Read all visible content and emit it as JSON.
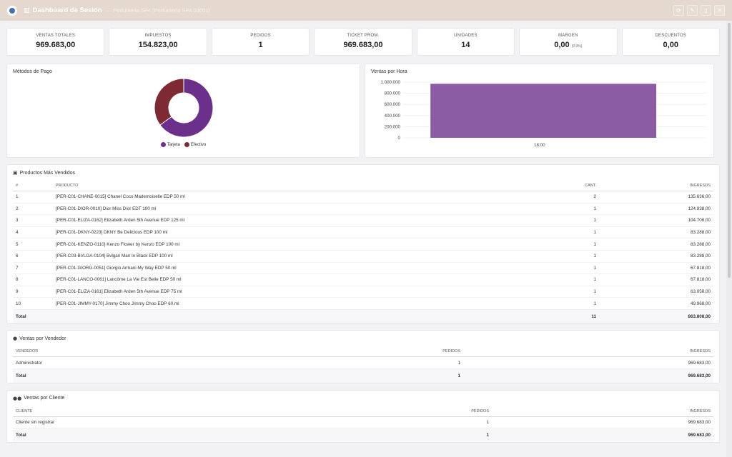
{
  "header": {
    "title": "Dashboard de Sesión",
    "subtitle": "— Perfumeria SPA (Perfumeria SPA 00001)",
    "actions": [
      "refresh-icon",
      "pencil-icon",
      "file-icon",
      "close-icon"
    ]
  },
  "kpis": [
    {
      "label": "VENTAS TOTALES",
      "value": "969.683,00"
    },
    {
      "label": "IMPUESTOS",
      "value": "154.823,00"
    },
    {
      "label": "PEDIDOS",
      "value": "1"
    },
    {
      "label": "TICKET PROM.",
      "value": "969.683,00"
    },
    {
      "label": "UNIDADES",
      "value": "14"
    },
    {
      "label": "MARGEN",
      "value": "0,00",
      "note": "(0.0%)"
    },
    {
      "label": "DESCUENTOS",
      "value": "0,00"
    }
  ],
  "payment_chart": {
    "title": "Métodos de Pago",
    "colors": {
      "Tarjeta": "#6b2f8c",
      "Efectivo": "#7e2a35"
    }
  },
  "hour_chart": {
    "title": "Ventas por Hora",
    "bar_color": "#8b5ba3"
  },
  "chart_data": [
    {
      "type": "pie",
      "labels": [
        "Tarjeta",
        "Efectivo"
      ],
      "values": [
        65,
        35
      ]
    },
    {
      "type": "bar",
      "categories": [
        "18:00"
      ],
      "values": [
        969683
      ],
      "ylim": [
        0,
        1000000
      ],
      "yticks": [
        "1.000.000",
        "800.000",
        "600.000",
        "400.000",
        "200.000",
        "0"
      ],
      "grid": true
    }
  ],
  "products": {
    "title": "Productos Más Vendidos",
    "headers": [
      "#",
      "PRODUCTO",
      "CANT.",
      "INGRESOS"
    ],
    "rows": [
      [
        "1",
        "[PER-C01-CHANE-0015] Chanel Coco Mademoiselle EDP 50 ml",
        "2",
        "135.636,00"
      ],
      [
        "2",
        "[PER-C01-DIOR-0010] Dior Miss Dior EDT 100 ml",
        "1",
        "124.938,00"
      ],
      [
        "3",
        "[PER-C01-ELIZA-0162] Elizabeth Arden 5th Avenue EDP 125 ml",
        "1",
        "104.708,00"
      ],
      [
        "4",
        "[PER-C01-DKNY-0223] DKNY Be Delicious EDP 100 ml",
        "1",
        "83.288,00"
      ],
      [
        "5",
        "[PER-C01-KENZO-0110] Kenzo Flower by Kenzo EDP 100 ml",
        "1",
        "83.288,00"
      ],
      [
        "6",
        "[PER-C03-BVLGA-0104] Bvlgari Man In Black EDP 100 ml",
        "1",
        "83.288,00"
      ],
      [
        "7",
        "[PER-C01-GIORG-0051] Giorgio Armani My Way EDP 50 ml",
        "1",
        "67.818,00"
      ],
      [
        "8",
        "[PER-C01-LANCO-0061] Lancôme La Vie Est Belle EDP 50 ml",
        "1",
        "67.818,00"
      ],
      [
        "9",
        "[PER-C01-ELIZA-0161] Elizabeth Arden 5th Avenue EDP 75 ml",
        "1",
        "63.058,00"
      ],
      [
        "10",
        "[PER-C01-JIMMY-0170] Jimmy Choo Jimmy Choo EDP 60 ml",
        "1",
        "49.968,00"
      ]
    ],
    "total": {
      "label": "Total",
      "qty": "11",
      "amount": "863.808,00"
    }
  },
  "sellers": {
    "title": "Ventas por Vendedor",
    "headers": [
      "VENDEDOR",
      "PEDIDOS",
      "INGRESOS"
    ],
    "rows": [
      [
        "Administrator",
        "1",
        "969.683,00"
      ]
    ],
    "total": {
      "label": "Total",
      "qty": "1",
      "amount": "969.683,00"
    }
  },
  "clients": {
    "title": "Ventas por Cliente",
    "headers": [
      "CLIENTE",
      "PEDIDOS",
      "INGRESOS"
    ],
    "rows": [
      [
        "Cliente sin registrar",
        "1",
        "969.683,00"
      ]
    ],
    "total": {
      "label": "Total",
      "qty": "1",
      "amount": "969.683,00"
    }
  }
}
